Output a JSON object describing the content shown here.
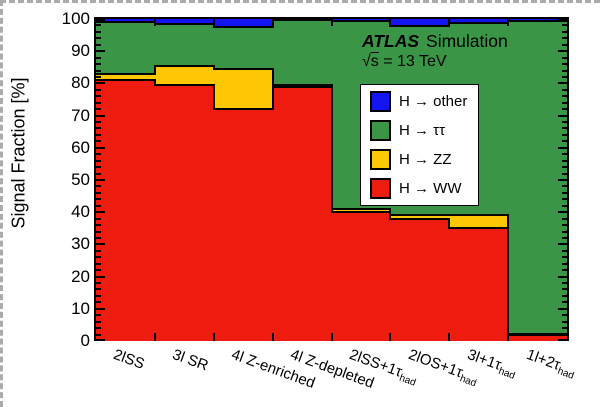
{
  "annotations": {
    "experiment": "ATLAS",
    "label_type": "Simulation",
    "sqrt_symbol": "√",
    "sqrt_s_var": "s",
    "energy_text": "= 13 TeV"
  },
  "legend": {
    "position": "top-right-inside",
    "entries": [
      {
        "label": "H → other",
        "color": "#1414F0"
      },
      {
        "label": "H → ττ",
        "color": "#3A9646"
      },
      {
        "label": "H → ZZ",
        "color": "#FDC704"
      },
      {
        "label": "H → WW",
        "color": "#ED1C0F"
      }
    ]
  },
  "chart_data": {
    "type": "bar",
    "stacked": true,
    "title": "ATLAS Simulation",
    "subtitle": "√s = 13 TeV",
    "ylabel": "Signal Fraction [%]",
    "ylim": [
      0,
      100
    ],
    "yticks": [
      0,
      10,
      20,
      30,
      40,
      50,
      60,
      70,
      80,
      90,
      100
    ],
    "ytick_minor_step": 2,
    "grid": false,
    "categories": [
      "2lSS",
      "3l SR",
      "4l Z-enriched",
      "4l Z-depleted",
      "2lSS+1τhad",
      "2lOS+1τhad",
      "3l+1τhad",
      "1l+2τhad"
    ],
    "categories_display": [
      {
        "main": "2lSS",
        "sub": ""
      },
      {
        "main": "3l SR",
        "sub": ""
      },
      {
        "main": "4l Z-enriched",
        "sub": ""
      },
      {
        "main": "4l Z-depleted",
        "sub": ""
      },
      {
        "main": "2lSS+1τ",
        "sub": "had"
      },
      {
        "main": "2lOS+1τ",
        "sub": "had"
      },
      {
        "main": "3l+1τ",
        "sub": "had"
      },
      {
        "main": "1l+2τ",
        "sub": "had"
      }
    ],
    "series": [
      {
        "name": "H → WW",
        "key": "h-ww",
        "color": "#ED1C0F",
        "values": [
          81,
          79.5,
          72,
          79,
          40,
          38,
          35,
          2
        ]
      },
      {
        "name": "H → ZZ",
        "key": "h-zz",
        "color": "#FDC704",
        "values": [
          2,
          6,
          12.5,
          0.5,
          1,
          1,
          4,
          0.3
        ]
      },
      {
        "name": "H → ττ",
        "key": "h-tautau",
        "color": "#3A9646",
        "values": [
          16,
          13,
          13,
          20.3,
          58.5,
          58.8,
          59.8,
          97.2
        ]
      },
      {
        "name": "H → other",
        "key": "h-other",
        "color": "#1414F0",
        "values": [
          1,
          1.5,
          2.5,
          0.2,
          0.5,
          2.2,
          1.2,
          0.5
        ]
      }
    ]
  }
}
